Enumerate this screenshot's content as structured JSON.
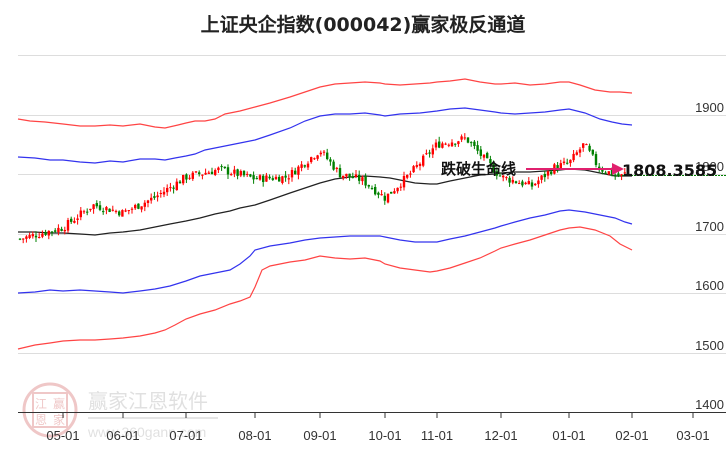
{
  "title": "上证央企指数(000042)赢家极反通道",
  "watermark": {
    "brand": "赢家江恩软件",
    "url": "www.360gann.com",
    "seal_chars": [
      "江",
      "赢",
      "恩",
      "家"
    ]
  },
  "annotation": {
    "label": "跌破生命线",
    "price_label": "1808.3585",
    "arrow_color": "#e0206e",
    "hline_color": "#008000"
  },
  "colors": {
    "up": "#ff0000",
    "down": "#008000",
    "outer_band": "#ff4444",
    "inner_band": "#3333ee",
    "midline": "#222222",
    "grid": "#dddddd",
    "axis": "#333333"
  },
  "chart_data": {
    "type": "candlestick",
    "title": "上证央企指数(000042)赢家极反通道",
    "xlabel": "",
    "ylabel": "",
    "ylim": [
      1400,
      2000
    ],
    "y_ticks": [
      1400,
      1500,
      1600,
      1700,
      1800,
      1900
    ],
    "x_ticks": [
      "05-01",
      "06-01",
      "07-01",
      "08-01",
      "09-01",
      "10-01",
      "11-01",
      "12-01",
      "01-01",
      "02-01",
      "03-01"
    ],
    "grid": true,
    "last_price": 1808.3585,
    "annotation": "跌破生命线",
    "series": [
      {
        "name": "upper_outer_band",
        "color": "red",
        "points": [
          [
            "start",
            1873
          ],
          [
            "05-01",
            1867
          ],
          [
            "06-01",
            1860
          ],
          [
            "07-01",
            1866
          ],
          [
            "07-15",
            1852
          ],
          [
            "08-01",
            1880
          ],
          [
            "09-01",
            1922
          ],
          [
            "10-01",
            1928
          ],
          [
            "10-15",
            1922
          ],
          [
            "11-01",
            1932
          ],
          [
            "11-20",
            1932
          ],
          [
            "12-01",
            1926
          ],
          [
            "01-01",
            1932
          ],
          [
            "02-01",
            1924
          ]
        ]
      },
      {
        "name": "upper_inner_band",
        "color": "blue",
        "points": [
          [
            "start",
            1834
          ],
          [
            "05-01",
            1830
          ],
          [
            "06-01",
            1828
          ],
          [
            "07-01",
            1836
          ],
          [
            "07-15",
            1830
          ],
          [
            "08-01",
            1852
          ],
          [
            "09-01",
            1885
          ],
          [
            "10-01",
            1890
          ],
          [
            "10-15",
            1886
          ],
          [
            "11-01",
            1895
          ],
          [
            "11-20",
            1898
          ],
          [
            "12-01",
            1890
          ],
          [
            "01-01",
            1897
          ],
          [
            "02-01",
            1882
          ]
        ]
      },
      {
        "name": "midline",
        "color": "black",
        "points": [
          [
            "start",
            1702
          ],
          [
            "05-01",
            1700
          ],
          [
            "06-01",
            1695
          ],
          [
            "07-01",
            1710
          ],
          [
            "08-01",
            1742
          ],
          [
            "09-01",
            1780
          ],
          [
            "10-01",
            1795
          ],
          [
            "10-20",
            1784
          ],
          [
            "11-01",
            1790
          ],
          [
            "12-01",
            1806
          ],
          [
            "01-01",
            1814
          ],
          [
            "02-01",
            1806
          ]
        ]
      },
      {
        "name": "lower_inner_band",
        "color": "blue",
        "points": [
          [
            "start",
            1597
          ],
          [
            "05-01",
            1600
          ],
          [
            "06-01",
            1594
          ],
          [
            "07-01",
            1622
          ],
          [
            "07-15",
            1637
          ],
          [
            "08-01",
            1680
          ],
          [
            "09-01",
            1702
          ],
          [
            "10-01",
            1710
          ],
          [
            "10-20",
            1695
          ],
          [
            "11-01",
            1698
          ],
          [
            "12-01",
            1716
          ],
          [
            "01-01",
            1740
          ],
          [
            "02-01",
            1718
          ]
        ]
      },
      {
        "name": "lower_outer_band",
        "color": "red",
        "points": [
          [
            "start",
            1503
          ],
          [
            "05-01",
            1512
          ],
          [
            "06-01",
            1514
          ],
          [
            "07-01",
            1540
          ],
          [
            "07-15",
            1580
          ],
          [
            "08-01",
            1610
          ],
          [
            "09-01",
            1621
          ],
          [
            "10-01",
            1620
          ],
          [
            "10-20",
            1595
          ],
          [
            "11-01",
            1596
          ],
          [
            "12-01",
            1632
          ],
          [
            "01-01",
            1664
          ],
          [
            "02-01",
            1637
          ]
        ]
      },
      {
        "name": "close",
        "color": "candles",
        "points": [
          [
            "start",
            1690
          ],
          [
            "05-01",
            1710
          ],
          [
            "05-15",
            1748
          ],
          [
            "06-01",
            1735
          ],
          [
            "06-15",
            1760
          ],
          [
            "07-01",
            1795
          ],
          [
            "07-15",
            1808
          ],
          [
            "08-01",
            1792
          ],
          [
            "08-15",
            1795
          ],
          [
            "09-01",
            1840
          ],
          [
            "09-10",
            1800
          ],
          [
            "09-20",
            1790
          ],
          [
            "10-01",
            1760
          ],
          [
            "10-15",
            1800
          ],
          [
            "11-01",
            1850
          ],
          [
            "11-15",
            1860
          ],
          [
            "11-25",
            1822
          ],
          [
            "12-01",
            1795
          ],
          [
            "12-15",
            1780
          ],
          [
            "12-25",
            1812
          ],
          [
            "01-01",
            1818
          ],
          [
            "01-08",
            1850
          ],
          [
            "01-15",
            1810
          ],
          [
            "01-25",
            1795
          ],
          [
            "02-01",
            1808
          ]
        ]
      }
    ]
  }
}
